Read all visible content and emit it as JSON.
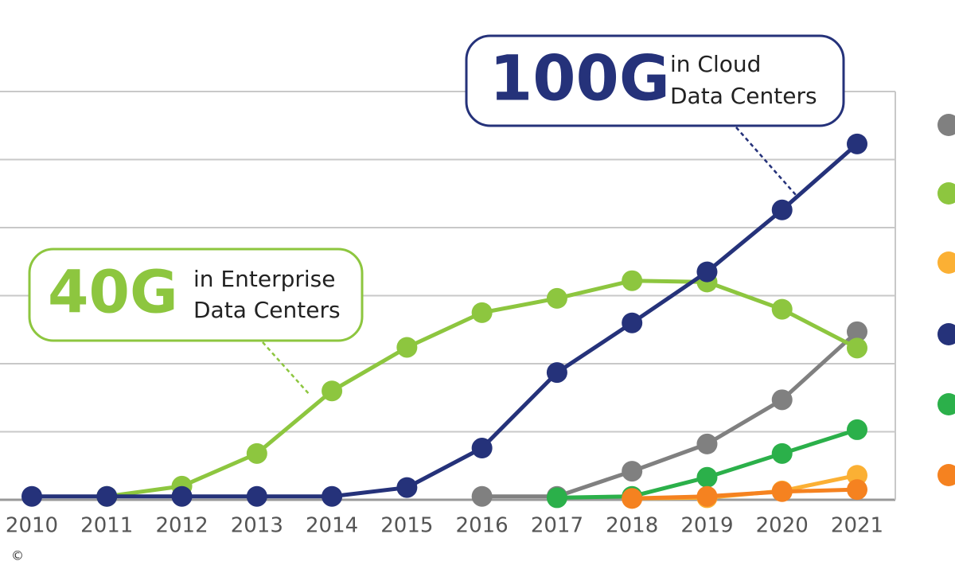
{
  "chart_data": {
    "type": "line",
    "categories": [
      "2010",
      "2011",
      "2012",
      "2013",
      "2014",
      "2015",
      "2016",
      "2017",
      "2018",
      "2019",
      "2020",
      "2021"
    ],
    "series": [
      {
        "color": "#808080",
        "values": [
          null,
          null,
          null,
          null,
          null,
          null,
          0.05,
          0.05,
          0.42,
          0.82,
          1.47,
          2.47
        ]
      },
      {
        "color": "#8dc63f",
        "values": [
          null,
          0.05,
          0.2,
          0.68,
          1.6,
          2.24,
          2.75,
          2.96,
          3.22,
          3.2,
          2.8,
          2.23
        ]
      },
      {
        "color": "#fbb034",
        "values": [
          null,
          null,
          null,
          null,
          null,
          null,
          null,
          null,
          0.02,
          0.03,
          0.13,
          0.36
        ]
      },
      {
        "color": "#25327a",
        "values": [
          0.05,
          0.05,
          0.05,
          0.05,
          0.05,
          0.18,
          0.76,
          1.87,
          2.6,
          3.35,
          4.26,
          5.23
        ]
      },
      {
        "color": "#2bb04a",
        "values": [
          null,
          null,
          null,
          null,
          null,
          null,
          null,
          0.03,
          0.05,
          0.33,
          0.68,
          1.03
        ]
      },
      {
        "color": "#f58220",
        "values": [
          null,
          null,
          null,
          null,
          null,
          null,
          null,
          null,
          0.02,
          0.05,
          0.12,
          0.15
        ]
      }
    ],
    "ylim": [
      0,
      6
    ],
    "yticks": [
      0,
      1,
      2,
      3,
      4,
      5,
      6
    ],
    "grid": true,
    "annotations": [
      {
        "big": "100G",
        "small": [
          "in Cloud",
          "Data Centers"
        ],
        "color": "#25327a"
      },
      {
        "big": "40G",
        "small": [
          "in Enterprise",
          "Data Centers"
        ],
        "color": "#8dc63f"
      }
    ],
    "copyright": "©"
  }
}
